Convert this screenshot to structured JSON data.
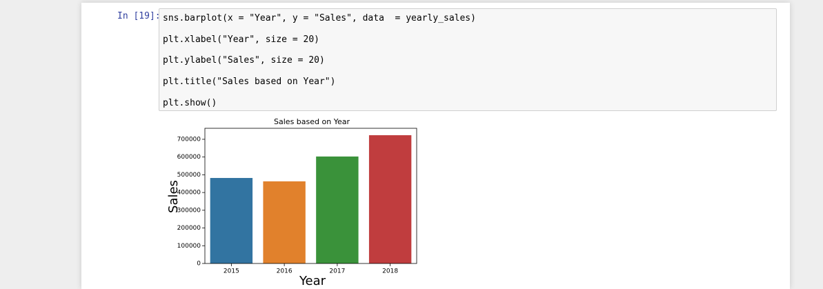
{
  "prompt": "In [19]:",
  "code_lines": [
    "sns.barplot(x = \"Year\", y = \"Sales\", data  = yearly_sales)",
    "plt.xlabel(\"Year\", size = 20)",
    "plt.ylabel(\"Sales\", size = 20)",
    "plt.title(\"Sales based on Year\")",
    "plt.show()"
  ],
  "chart_data": {
    "type": "bar",
    "title": "Sales based on Year",
    "x_label": "Year",
    "y_label": "Sales",
    "categories": [
      "2015",
      "2016",
      "2017",
      "2018"
    ],
    "values": [
      482000,
      463000,
      603000,
      723000
    ],
    "colors": [
      "#3274a1",
      "#e1812c",
      "#3a923a",
      "#c03d3e"
    ],
    "ylim": [
      0,
      762000
    ],
    "yticks": [
      0,
      100000,
      200000,
      300000,
      400000,
      500000,
      600000,
      700000
    ]
  }
}
